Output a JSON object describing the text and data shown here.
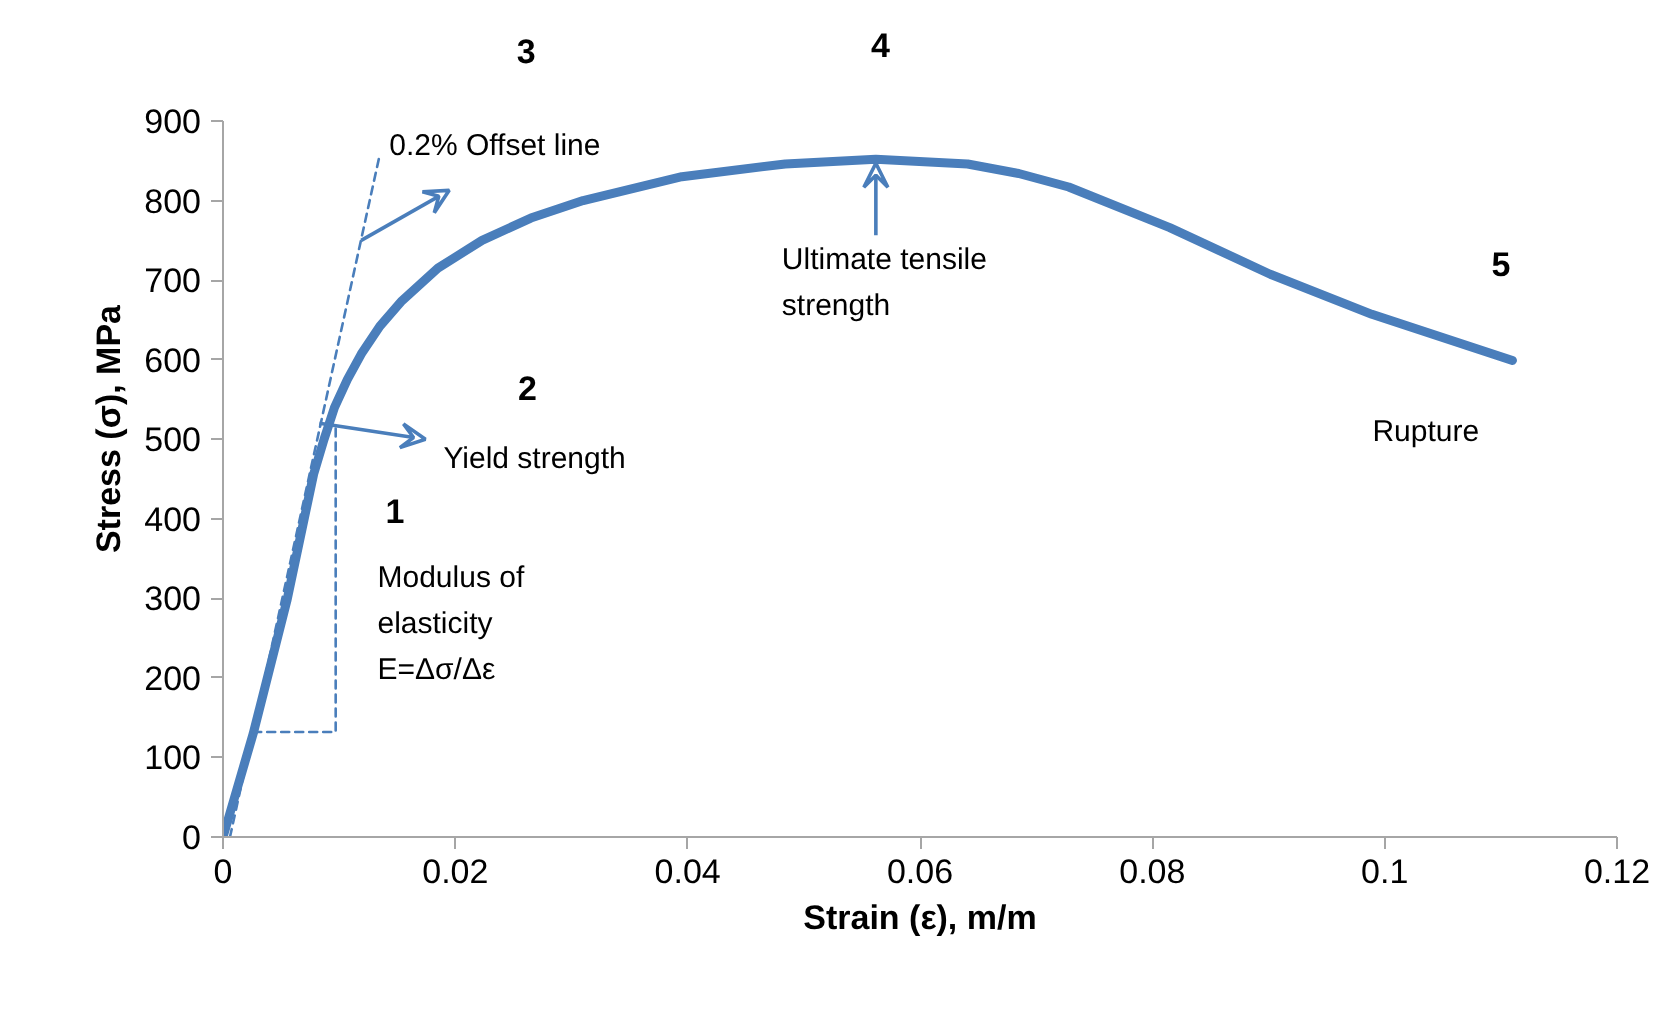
{
  "chart_data": {
    "type": "line",
    "xlabel": "Strain (ε), m/m",
    "ylabel": "Stress (σ), MPa",
    "xlim": [
      0,
      0.12
    ],
    "xticks": [
      0,
      0.02,
      0.04,
      0.06,
      0.08,
      0.1,
      0.12
    ],
    "ylim": [
      0,
      900
    ],
    "yticks": [
      0,
      100,
      200,
      300,
      400,
      500,
      600,
      700,
      800,
      900
    ],
    "grid": false,
    "marker": "none",
    "series": [
      {
        "color": "#4a7ebb",
        "line_style": "solid",
        "x": [
          0,
          0.0026,
          0.0055,
          0.0078,
          0.0087,
          0.0096,
          0.0107,
          0.0119,
          0.0135,
          0.0154,
          0.0185,
          0.0223,
          0.0265,
          0.031,
          0.0395,
          0.0484,
          0.0562,
          0.0641,
          0.0685,
          0.0728,
          0.0815,
          0.0902,
          0.0989,
          0.111
        ],
        "values": [
          0,
          130,
          297,
          456,
          500,
          540,
          575,
          607,
          642,
          674,
          715,
          750,
          778,
          800,
          830,
          846,
          852,
          846,
          834,
          817,
          766,
          707,
          657,
          599
        ]
      },
      {
        "color": "#4a7ebb",
        "line_style": "dashed",
        "x": [
          0.0006,
          0.0135
        ],
        "values": [
          0,
          858
        ]
      },
      {
        "color": "#4a7ebb",
        "line_style": "dashed",
        "x": [
          0.0026,
          0.0097,
          0.0097
        ],
        "values": [
          132,
          132,
          515
        ]
      }
    ],
    "annotations": [
      "1",
      "Modulus of\nelasticity\nE=Δσ/Δε",
      "2",
      {
        "text": "Yield strength",
        "x": 0.0083,
        "y": 520
      },
      "3",
      {
        "text": "0.2% Offset line",
        "x": 0.0119,
        "y": 750
      },
      "4",
      {
        "text": "Ultimate tensile\nstrength",
        "x": 0.0562,
        "y": 852
      },
      "5",
      {
        "text": "Rupture",
        "x": 0.111,
        "y": 599
      }
    ]
  }
}
